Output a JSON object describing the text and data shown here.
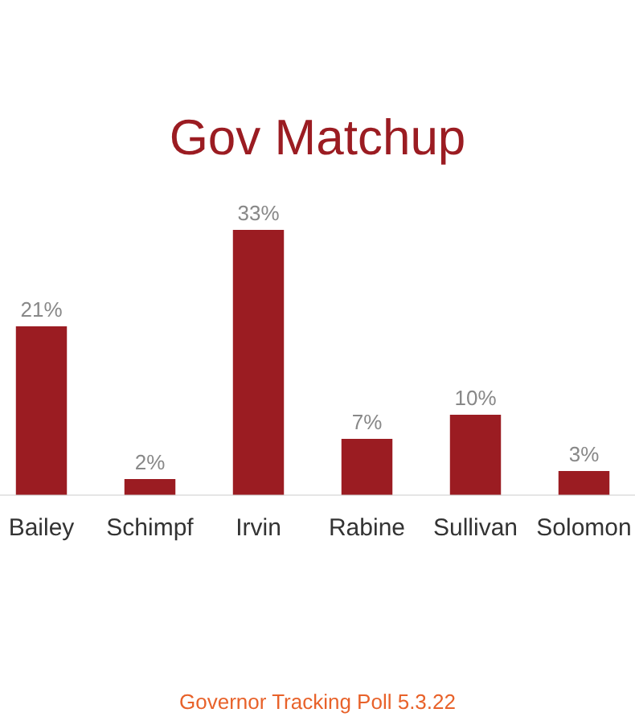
{
  "chart_data": {
    "type": "bar",
    "title": "Gov Matchup",
    "categories": [
      "Bailey",
      "Schimpf",
      "Irvin",
      "Rabine",
      "Sullivan",
      "Solomon"
    ],
    "values": [
      21,
      2,
      33,
      7,
      10,
      3
    ],
    "value_labels": [
      "21%",
      "2%",
      "33%",
      "7%",
      "10%",
      "3%"
    ],
    "color": "#9b1c22",
    "annotations": [
      "Governor Tracking Poll 5.3.22"
    ]
  }
}
